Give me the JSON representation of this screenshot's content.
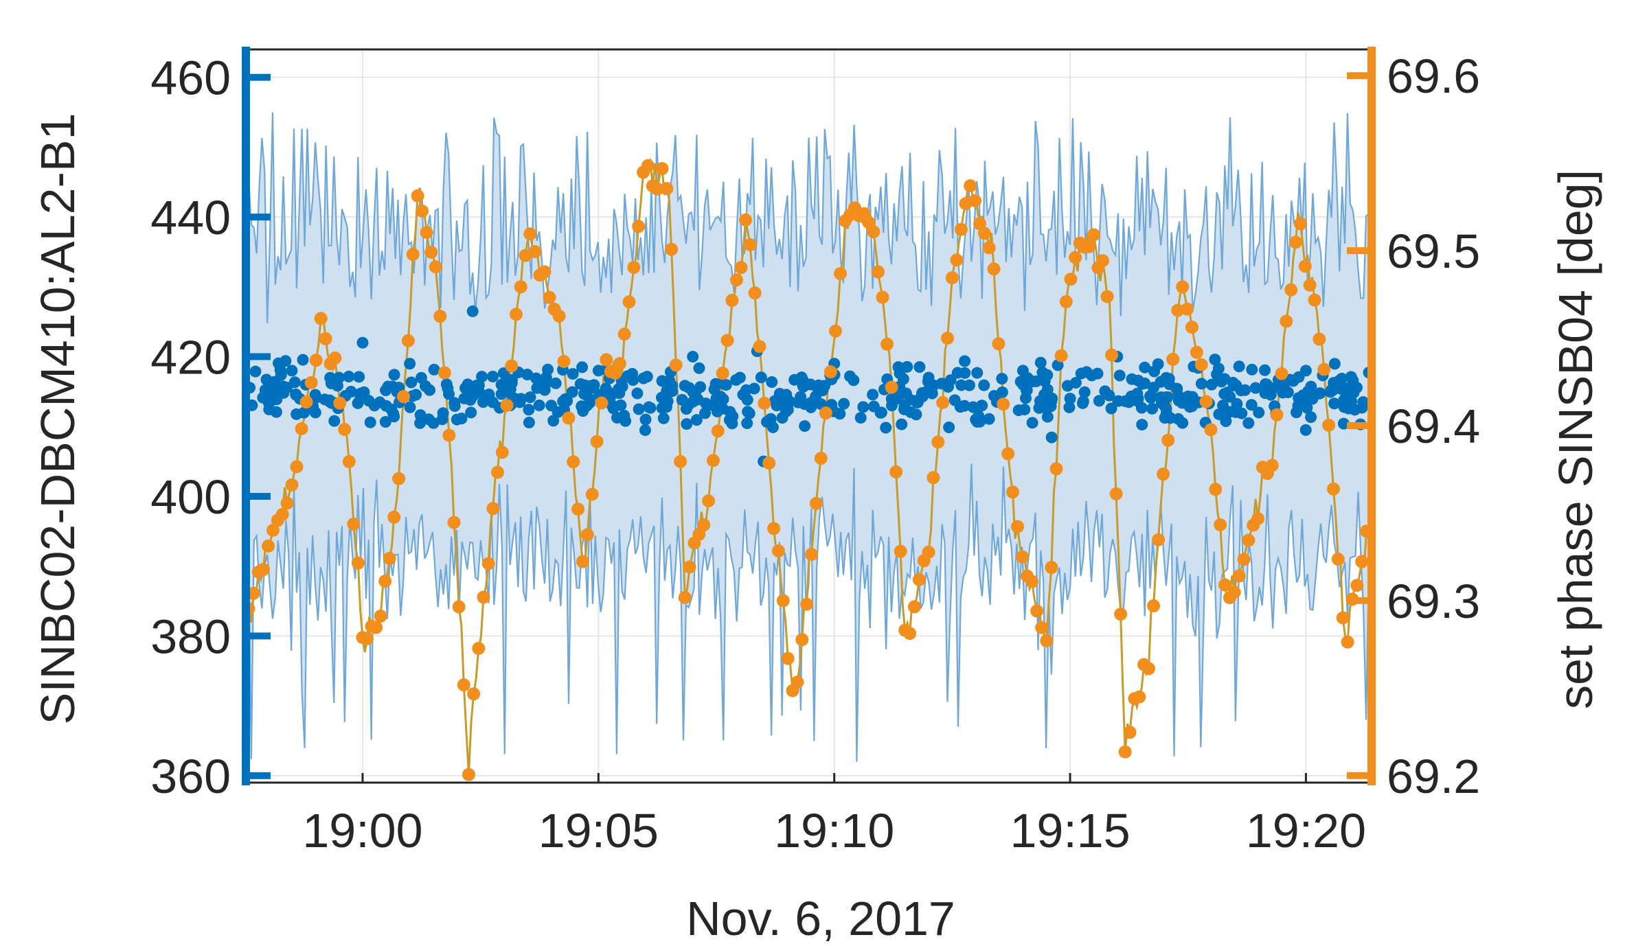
{
  "chart_data": {
    "type": "line",
    "title": "",
    "xlabel": "Nov. 6, 2017",
    "ylabel_left": "SINBC02-DBCM410:AL2-B1",
    "ylabel_right": "set phase SINSB04 [deg]",
    "x_time_range": [
      "18:57:35",
      "19:21:20"
    ],
    "x_ticks": [
      "19:00",
      "19:05",
      "19:10",
      "19:15",
      "19:20"
    ],
    "ylim_left": [
      359,
      464
    ],
    "ylim_right": [
      69.196,
      69.615
    ],
    "yticks_left": [
      "360",
      "380",
      "400",
      "420",
      "440",
      "460"
    ],
    "yticks_right": [
      "69.2",
      "69.3",
      "69.4",
      "69.5",
      "69.6"
    ],
    "grid": true,
    "legend": "none",
    "colors": {
      "left_axis": "#0072BD",
      "right_axis": "#F28E1C",
      "band": "#6FA8D8",
      "band_fill": "#CFE1F1",
      "orange_line": "#C89A2A",
      "grid": "#E6E6E6",
      "axes": "#262626"
    },
    "series": [
      {
        "axis": "left",
        "style": "scatter",
        "summary": "points scattered between about 405 and 427 around a mean of 414.5",
        "mean": 414.5,
        "points": [
          [
            "18:58:00",
            414
          ],
          [
            "18:58:30",
            418
          ],
          [
            "18:59:00",
            412
          ],
          [
            "18:59:30",
            417
          ],
          [
            "19:00:00",
            422
          ],
          [
            "19:00:15",
            413
          ],
          [
            "19:01:00",
            419
          ],
          [
            "19:02:00",
            411
          ],
          [
            "19:02:20",
            426.5
          ],
          [
            "19:03:00",
            416
          ],
          [
            "19:04:00",
            413
          ],
          [
            "19:05:00",
            418
          ],
          [
            "19:06:00",
            411
          ],
          [
            "19:07:00",
            420
          ],
          [
            "19:07:30",
            414
          ],
          [
            "19:08:00",
            417
          ],
          [
            "19:08:30",
            405
          ],
          [
            "19:09:00",
            413
          ],
          [
            "19:10:00",
            419
          ],
          [
            "19:11:00",
            412
          ],
          [
            "19:12:00",
            417
          ],
          [
            "19:13:00",
            411
          ],
          [
            "19:14:00",
            418
          ],
          [
            "19:15:00",
            414
          ],
          [
            "19:16:00",
            420
          ],
          [
            "19:17:00",
            413
          ],
          [
            "19:18:00",
            416
          ],
          [
            "19:19:00",
            412
          ],
          [
            "19:20:00",
            418
          ],
          [
            "19:21:00",
            415
          ]
        ]
      },
      {
        "axis": "left",
        "style": "band",
        "summary": "envelope around the points, upper edge mostly 430–445 (peaks near 455), lower edge mostly 385–395 (dips near 361)",
        "upper_typical": [
          430,
          445
        ],
        "upper_max": 455,
        "lower_typical": [
          385,
          395
        ],
        "lower_min": 361
      },
      {
        "axis": "right",
        "style": "line+markers",
        "unit": "deg",
        "points": [
          [
            "18:57:35",
            69.29
          ],
          [
            "18:58:00",
            69.33
          ],
          [
            "18:58:30",
            69.37
          ],
          [
            "18:59:10",
            69.46
          ],
          [
            "18:59:40",
            69.4
          ],
          [
            "19:00:00",
            69.28
          ],
          [
            "19:00:20",
            69.29
          ],
          [
            "19:00:40",
            69.34
          ],
          [
            "19:01:10",
            69.53
          ],
          [
            "19:01:30",
            69.5
          ],
          [
            "19:01:50",
            69.4
          ],
          [
            "19:02:15",
            69.21
          ],
          [
            "19:02:40",
            69.33
          ],
          [
            "19:03:30",
            69.51
          ],
          [
            "19:04:10",
            69.46
          ],
          [
            "19:04:40",
            69.32
          ],
          [
            "19:05:10",
            69.44
          ],
          [
            "19:05:30",
            69.43
          ],
          [
            "19:06:00",
            69.55
          ],
          [
            "19:06:30",
            69.53
          ],
          [
            "19:06:50",
            69.31
          ],
          [
            "19:07:20",
            69.36
          ],
          [
            "19:07:50",
            69.47
          ],
          [
            "19:08:10",
            69.52
          ],
          [
            "19:08:40",
            69.36
          ],
          [
            "19:09:10",
            69.24
          ],
          [
            "19:09:40",
            69.37
          ],
          [
            "19:10:20",
            69.53
          ],
          [
            "19:10:50",
            69.51
          ],
          [
            "19:11:10",
            69.44
          ],
          [
            "19:11:30",
            69.28
          ],
          [
            "19:12:00",
            69.33
          ],
          [
            "19:12:30",
            69.48
          ],
          [
            "19:12:50",
            69.54
          ],
          [
            "19:13:20",
            69.5
          ],
          [
            "19:13:50",
            69.34
          ],
          [
            "19:14:30",
            69.28
          ],
          [
            "19:14:55",
            69.48
          ],
          [
            "19:15:30",
            69.51
          ],
          [
            "19:15:50",
            69.47
          ],
          [
            "19:16:10",
            69.22
          ],
          [
            "19:16:40",
            69.27
          ],
          [
            "19:17:20",
            69.48
          ],
          [
            "19:17:50",
            69.43
          ],
          [
            "19:18:20",
            69.3
          ],
          [
            "19:18:50",
            69.34
          ],
          [
            "19:19:20",
            69.39
          ],
          [
            "19:19:50",
            69.52
          ],
          [
            "19:20:20",
            69.45
          ],
          [
            "19:20:50",
            69.28
          ],
          [
            "19:21:20",
            69.34
          ]
        ]
      }
    ]
  }
}
